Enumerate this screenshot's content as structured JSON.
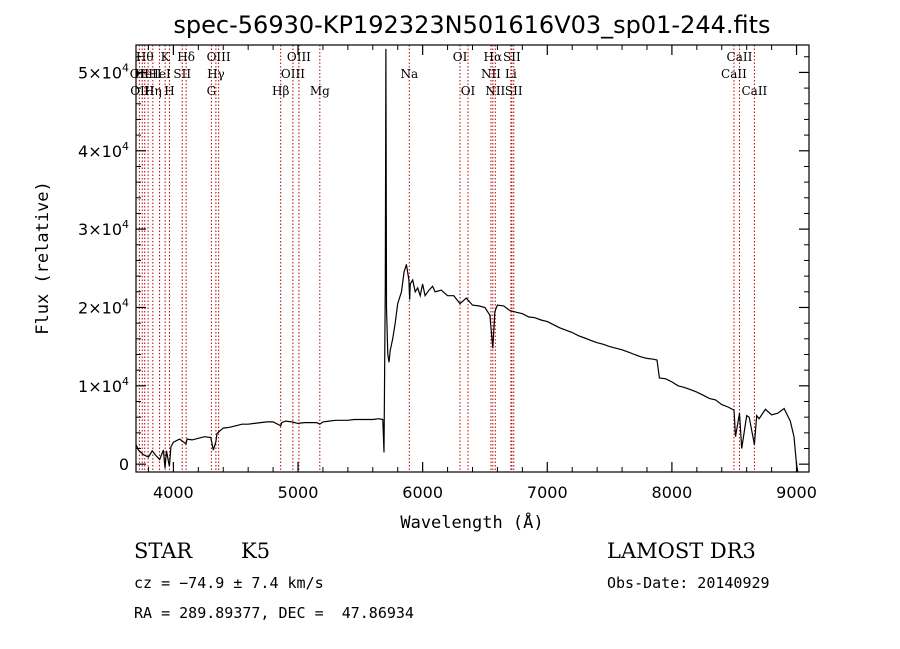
{
  "chart_data": {
    "type": "line",
    "title": "spec-56930-KP192323N501616V03_sp01-244.fits",
    "xlabel": "Wavelength (Å)",
    "ylabel": "Flux (relative)",
    "xlim": [
      3700,
      9100
    ],
    "ylim": [
      -1000,
      53500
    ],
    "x_ticks": [
      4000,
      5000,
      6000,
      7000,
      8000,
      9000
    ],
    "x_tick_labels": [
      "4000",
      "5000",
      "6000",
      "7000",
      "8000",
      "9000"
    ],
    "y_ticks": [
      0,
      10000,
      20000,
      30000,
      40000,
      50000
    ],
    "y_tick_labels": [
      {
        "mant": "0",
        "exp": ""
      },
      {
        "mant": "1×10",
        "exp": "4"
      },
      {
        "mant": "2×10",
        "exp": "4"
      },
      {
        "mant": "3×10",
        "exp": "4"
      },
      {
        "mant": "4×10",
        "exp": "4"
      },
      {
        "mant": "5×10",
        "exp": "4"
      }
    ],
    "series": [
      {
        "name": "flux",
        "x": [
          3700,
          3720,
          3760,
          3800,
          3830,
          3860,
          3890,
          3900,
          3920,
          3933,
          3945,
          3968,
          3980,
          4000,
          4050,
          4101,
          4110,
          4150,
          4200,
          4250,
          4300,
          4320,
          4340,
          4350,
          4370,
          4400,
          4450,
          4500,
          4550,
          4600,
          4650,
          4700,
          4750,
          4800,
          4861,
          4870,
          4900,
          4950,
          5000,
          5050,
          5100,
          5150,
          5175,
          5200,
          5250,
          5300,
          5350,
          5400,
          5450,
          5500,
          5550,
          5600,
          5650,
          5680,
          5690,
          5700,
          5705,
          5710,
          5720,
          5730,
          5740,
          5760,
          5780,
          5800,
          5830,
          5850,
          5870,
          5890,
          5896,
          5900,
          5920,
          5940,
          5960,
          5980,
          6000,
          6020,
          6050,
          6080,
          6100,
          6150,
          6200,
          6250,
          6300,
          6350,
          6400,
          6450,
          6500,
          6540,
          6563,
          6580,
          6600,
          6650,
          6700,
          6750,
          6800,
          6850,
          6900,
          6950,
          7000,
          7050,
          7100,
          7150,
          7200,
          7250,
          7300,
          7350,
          7400,
          7450,
          7500,
          7550,
          7600,
          7650,
          7700,
          7750,
          7800,
          7850,
          7880,
          7900,
          7950,
          8000,
          8050,
          8100,
          8150,
          8200,
          8250,
          8300,
          8350,
          8400,
          8450,
          8498,
          8510,
          8542,
          8560,
          8600,
          8620,
          8662,
          8680,
          8700,
          8750,
          8800,
          8850,
          8900,
          8950,
          8980,
          9000,
          9010
        ],
        "y": [
          2500,
          1800,
          1200,
          900,
          1700,
          1100,
          600,
          1000,
          1800,
          -500,
          1700,
          -300,
          2200,
          2800,
          3200,
          2600,
          3200,
          3100,
          3300,
          3500,
          3400,
          1800,
          2800,
          3900,
          4200,
          4600,
          4700,
          4900,
          5100,
          5100,
          5200,
          5300,
          5400,
          5400,
          4900,
          5300,
          5500,
          5400,
          5200,
          5300,
          5300,
          5300,
          5100,
          5400,
          5500,
          5600,
          5600,
          5600,
          5700,
          5700,
          5700,
          5700,
          5800,
          5700,
          1500,
          23000,
          53000,
          20000,
          14000,
          13000,
          14500,
          16000,
          18000,
          20500,
          22000,
          24500,
          25500,
          23500,
          21000,
          23000,
          23500,
          22000,
          22500,
          21500,
          23000,
          21500,
          22200,
          22700,
          22000,
          22200,
          21500,
          21500,
          20500,
          21200,
          20300,
          20200,
          20000,
          19000,
          14800,
          19500,
          20300,
          20200,
          19600,
          19400,
          19200,
          18800,
          18700,
          18400,
          18200,
          17800,
          17400,
          17100,
          16800,
          16400,
          16100,
          15800,
          15500,
          15300,
          15000,
          14800,
          14600,
          14300,
          14000,
          13700,
          13500,
          13400,
          13300,
          11000,
          10900,
          10500,
          10000,
          9800,
          9500,
          9200,
          8800,
          8400,
          8200,
          7600,
          7300,
          6900,
          3500,
          6500,
          2000,
          6200,
          6000,
          2500,
          6200,
          5800,
          7000,
          6300,
          6500,
          7100,
          5500,
          3500,
          0,
          -1000
        ]
      }
    ],
    "lines": [
      {
        "w": 3727,
        "label": "OII",
        "row": 1
      },
      {
        "w": 3750,
        "label": "OIII",
        "row": 2
      },
      {
        "w": 3770,
        "label": "Hθ",
        "row": 0
      },
      {
        "w": 3797,
        "label": "HeII",
        "row": 1
      },
      {
        "w": 3835,
        "label": "Hη",
        "row": 2
      },
      {
        "w": 3889,
        "label": "HeI",
        "row": 1
      },
      {
        "w": 3934,
        "label": "K",
        "row": 0
      },
      {
        "w": 3969,
        "label": "H",
        "row": 2
      },
      {
        "w": 4071,
        "label": "SII",
        "row": 1
      },
      {
        "w": 4102,
        "label": "Hδ",
        "row": 0
      },
      {
        "w": 4305,
        "label": "G",
        "row": 2
      },
      {
        "w": 4341,
        "label": "Hγ",
        "row": 1
      },
      {
        "w": 4363,
        "label": "OIII",
        "row": 0
      },
      {
        "w": 4861,
        "label": "Hβ",
        "row": 2
      },
      {
        "w": 4959,
        "label": "OIII",
        "row": 1
      },
      {
        "w": 5007,
        "label": "OIII",
        "row": 0
      },
      {
        "w": 5175,
        "label": "Mg",
        "row": 2
      },
      {
        "w": 5893,
        "label": "Na",
        "row": 1
      },
      {
        "w": 6300,
        "label": "OI",
        "row": 0
      },
      {
        "w": 6364,
        "label": "OI",
        "row": 2
      },
      {
        "w": 6548,
        "label": "NII",
        "row": 1
      },
      {
        "w": 6563,
        "label": "Hα",
        "row": 0
      },
      {
        "w": 6583,
        "label": "NII",
        "row": 2
      },
      {
        "w": 6708,
        "label": "Li",
        "row": 1
      },
      {
        "w": 6716,
        "label": "SII",
        "row": 0
      },
      {
        "w": 6731,
        "label": "SII",
        "row": 2
      },
      {
        "w": 8498,
        "label": "CaII",
        "row": 1
      },
      {
        "w": 8542,
        "label": "CaII",
        "row": 0
      },
      {
        "w": 8662,
        "label": "CaII",
        "row": 2
      }
    ]
  },
  "info": {
    "class": "STAR",
    "subclass": "K5",
    "survey": "LAMOST DR3",
    "cz": "cz = −74.9 ± 7.4 km/s",
    "obs_date": "Obs-Date: 20140929",
    "radec": "RA = 289.89377, DEC =  47.86934"
  }
}
